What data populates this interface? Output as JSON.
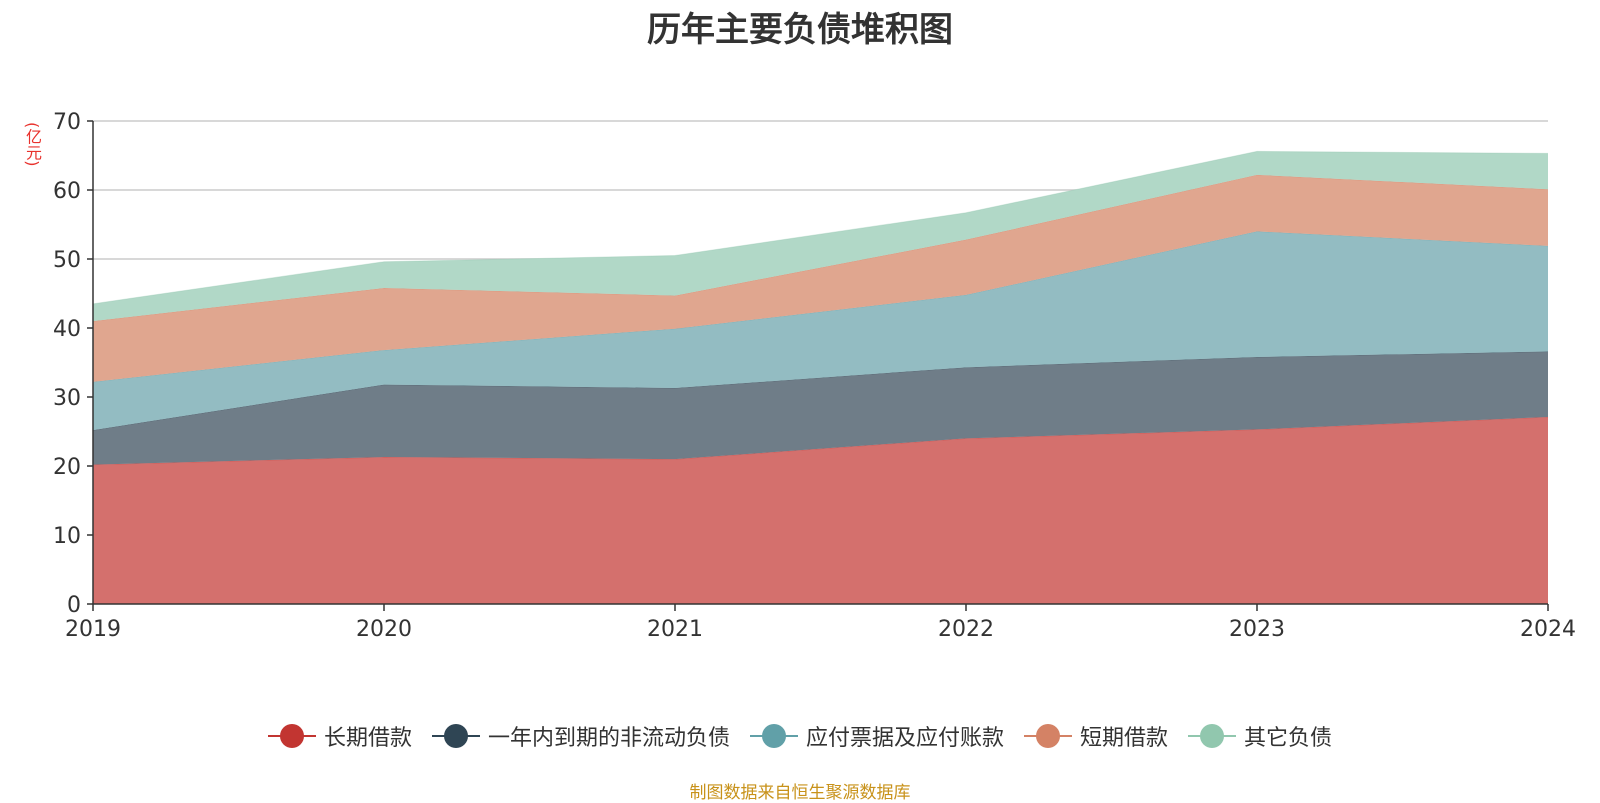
{
  "chart_data": {
    "type": "area",
    "stacked": true,
    "title": "历年主要负债堆积图",
    "unit_label": "(亿元)",
    "x": [
      "2019",
      "2020",
      "2021",
      "2022",
      "2023",
      "2024"
    ],
    "ylim": [
      0,
      70
    ],
    "yticks": [
      0,
      10,
      20,
      30,
      40,
      50,
      60,
      70
    ],
    "grid": true,
    "legend_position": "bottom",
    "series": [
      {
        "name": "长期借款",
        "color": "#c23531",
        "fill": "#d4706d",
        "values": [
          20.2,
          21.3,
          21.0,
          24.0,
          25.3,
          27.1
        ]
      },
      {
        "name": "一年内到期的非流动负债",
        "color": "#2f4554",
        "fill": "#6f7d88",
        "values": [
          5.0,
          10.5,
          10.3,
          10.3,
          10.5,
          9.5
        ]
      },
      {
        "name": "应付票据及应付账款",
        "color": "#61a0a8",
        "fill": "#93bcc2",
        "values": [
          7.0,
          5.0,
          8.6,
          10.5,
          18.2,
          15.3
        ]
      },
      {
        "name": "短期借款",
        "color": "#d48265",
        "fill": "#e0a68f",
        "values": [
          8.8,
          9.0,
          4.8,
          8.0,
          8.2,
          8.2
        ]
      },
      {
        "name": "其它负债",
        "color": "#91c7ae",
        "fill": "#b1d8c7",
        "values": [
          2.5,
          3.8,
          5.8,
          3.9,
          3.4,
          5.2
        ]
      }
    ]
  },
  "footer": {
    "source": "制图数据来自恒生聚源数据库"
  }
}
